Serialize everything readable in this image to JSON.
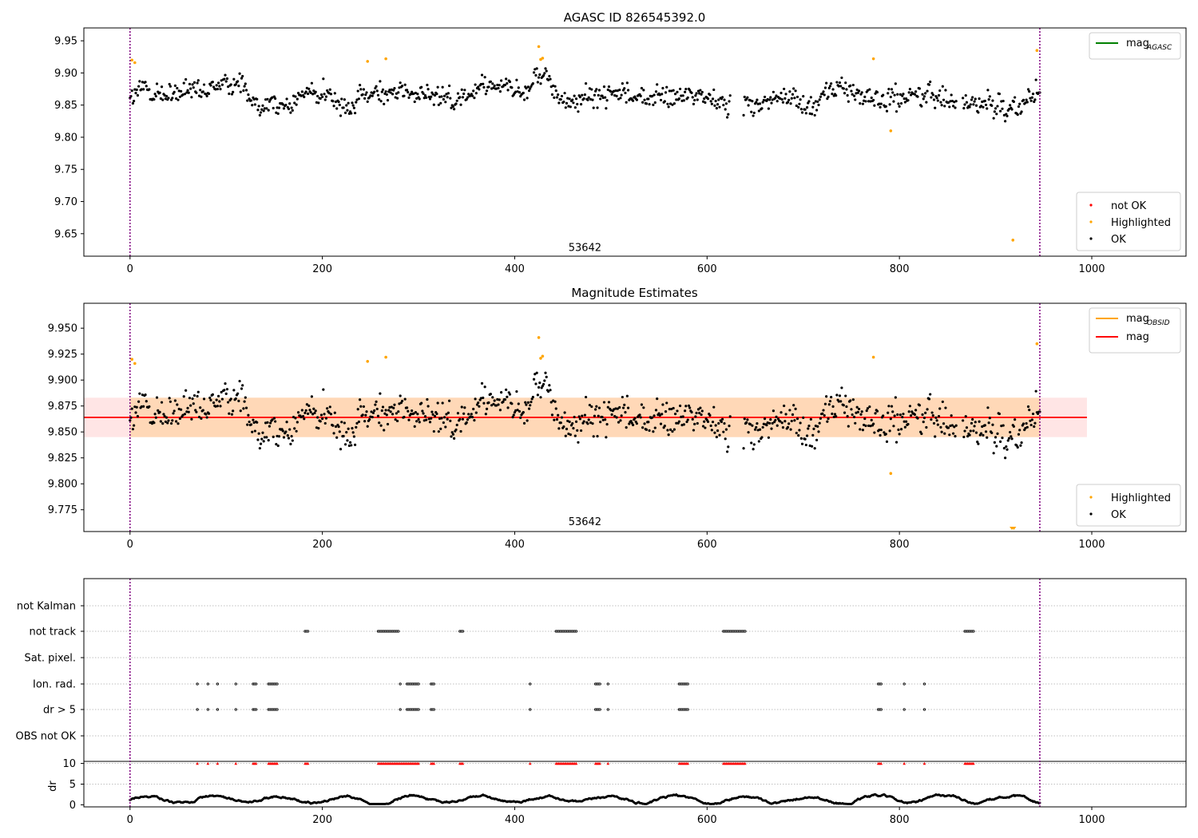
{
  "chart_data": [
    {
      "type": "scatter",
      "title": "AGASC ID 826545392.0",
      "xlim": [
        -48,
        1098
      ],
      "ylim": [
        9.615,
        9.97
      ],
      "xticks": [
        0,
        200,
        400,
        600,
        800,
        1000
      ],
      "yticks": [
        9.65,
        9.7,
        9.75,
        9.8,
        9.85,
        9.9,
        9.95
      ],
      "y_decimals": 2,
      "grid": false,
      "obs_label": "53642",
      "obs_label_x": 473,
      "obs_label_y": 9.618,
      "vlines": [
        0,
        946
      ],
      "mag_line": 9.864,
      "legend_lines": [
        {
          "label": "mag",
          "sub": "AGASC",
          "color": "#008000"
        }
      ],
      "legend_lines_position": "upper right",
      "legend_points": [
        {
          "label": "not OK",
          "color": "#ff0000"
        },
        {
          "label": "Highlighted",
          "color": "#ffa500"
        },
        {
          "label": "OK",
          "color": "#000000"
        }
      ],
      "legend_points_position": "lower right",
      "highlighted": [
        [
          2,
          9.92
        ],
        [
          5,
          9.916
        ],
        [
          247,
          9.918
        ],
        [
          266,
          9.922
        ],
        [
          425,
          9.941
        ],
        [
          427,
          9.921
        ],
        [
          429,
          9.923
        ],
        [
          773,
          9.922
        ],
        [
          791,
          9.81
        ],
        [
          918,
          9.64
        ],
        [
          943,
          9.935
        ]
      ]
    },
    {
      "type": "scatter",
      "title": "Magnitude Estimates",
      "xlim": [
        -48,
        1098
      ],
      "ylim": [
        9.754,
        9.974
      ],
      "xticks": [
        0,
        200,
        400,
        600,
        800,
        1000
      ],
      "yticks": [
        9.775,
        9.8,
        9.825,
        9.85,
        9.875,
        9.9,
        9.925,
        9.95
      ],
      "y_decimals": 3,
      "grid": false,
      "obs_label": "53642",
      "obs_label_x": 473,
      "obs_label_y": 9.757,
      "vlines": [
        0,
        946
      ],
      "mag": 9.864,
      "mag_band": [
        9.845,
        9.883
      ],
      "band_range": [
        -48,
        995
      ],
      "obs_band_range": [
        0,
        946
      ],
      "legend_lines": [
        {
          "label": "mag",
          "sub": "OBSID",
          "color": "#ffa500"
        },
        {
          "label": "mag",
          "sub": "",
          "color": "#ff0000"
        }
      ],
      "legend_lines_position": "upper right",
      "legend_points": [
        {
          "label": "Highlighted",
          "color": "#ffa500"
        },
        {
          "label": "OK",
          "color": "#000000"
        }
      ],
      "legend_points_position": "lower right",
      "highlighted": [
        [
          2,
          9.92
        ],
        [
          5,
          9.916
        ],
        [
          247,
          9.918
        ],
        [
          266,
          9.922
        ],
        [
          425,
          9.941
        ],
        [
          427,
          9.921
        ],
        [
          429,
          9.923
        ],
        [
          773,
          9.922
        ],
        [
          791,
          9.81
        ],
        [
          943,
          9.935
        ]
      ],
      "below_range_markers": [
        917,
        919
      ]
    },
    {
      "type": "scatter",
      "title": "",
      "xlim": [
        -48,
        1098
      ],
      "xticks": [
        0,
        200,
        400,
        600,
        800,
        1000
      ],
      "vlines": [
        0,
        946
      ],
      "flag_rows": [
        "not Kalman",
        "not track",
        "Sat. pixel.",
        "Ion. rad.",
        "dr > 5",
        "OBS not OK"
      ],
      "flag_ranges": {
        "not track": [
          [
            182,
            186
          ],
          [
            258,
            280
          ],
          [
            343,
            347
          ],
          [
            443,
            465
          ],
          [
            617,
            640
          ],
          [
            868,
            878
          ]
        ],
        "Ion. rad.": [
          [
            70,
            70
          ],
          [
            81,
            81
          ],
          [
            91,
            91
          ],
          [
            110,
            110
          ],
          [
            128,
            132
          ],
          [
            144,
            154
          ],
          [
            281,
            281
          ],
          [
            288,
            300
          ],
          [
            313,
            317
          ],
          [
            416,
            416
          ],
          [
            484,
            489
          ],
          [
            497,
            497
          ],
          [
            571,
            581
          ],
          [
            778,
            782
          ],
          [
            805,
            805
          ],
          [
            826,
            826
          ]
        ],
        "dr > 5": [
          [
            70,
            70
          ],
          [
            81,
            81
          ],
          [
            91,
            91
          ],
          [
            110,
            110
          ],
          [
            128,
            132
          ],
          [
            144,
            154
          ],
          [
            281,
            281
          ],
          [
            288,
            300
          ],
          [
            313,
            317
          ],
          [
            416,
            416
          ],
          [
            484,
            489
          ],
          [
            497,
            497
          ],
          [
            571,
            581
          ],
          [
            778,
            782
          ],
          [
            805,
            805
          ],
          [
            826,
            826
          ]
        ]
      },
      "dr_ylim": [
        -0.5,
        10.5
      ],
      "dr_yticks": [
        0,
        5,
        10
      ],
      "dr_ylabel": "dr",
      "dr_flag_ranges": [
        [
          70,
          70
        ],
        [
          81,
          81
        ],
        [
          91,
          91
        ],
        [
          110,
          110
        ],
        [
          128,
          132
        ],
        [
          144,
          154
        ],
        [
          182,
          186
        ],
        [
          258,
          300
        ],
        [
          313,
          317
        ],
        [
          343,
          347
        ],
        [
          416,
          416
        ],
        [
          443,
          465
        ],
        [
          484,
          489
        ],
        [
          497,
          497
        ],
        [
          571,
          581
        ],
        [
          617,
          640
        ],
        [
          778,
          782
        ],
        [
          805,
          805
        ],
        [
          826,
          826
        ],
        [
          868,
          878
        ]
      ]
    }
  ]
}
